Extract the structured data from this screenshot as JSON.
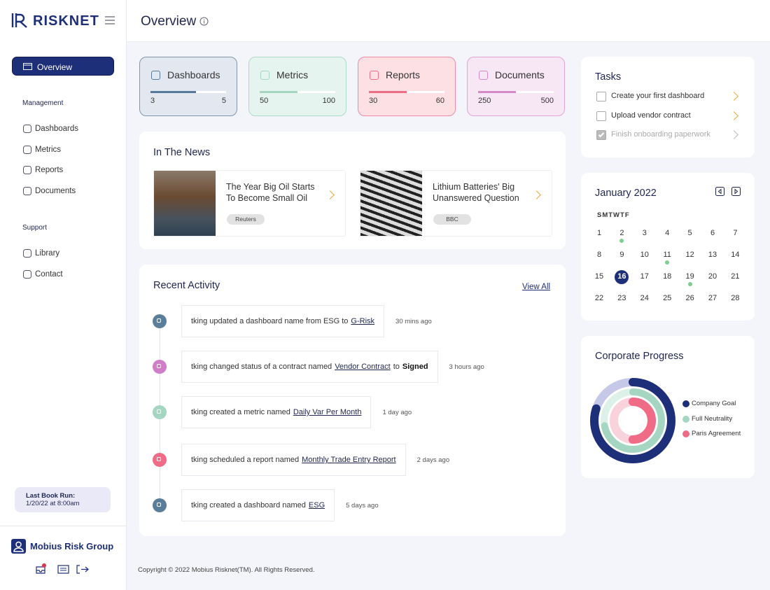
{
  "brand": "RISKNET",
  "header": {
    "title": "Overview"
  },
  "sidebar": {
    "active": "Overview",
    "sections": [
      {
        "title": "Management",
        "items": [
          "Dashboards",
          "Metrics",
          "Reports",
          "Documents"
        ]
      },
      {
        "title": "Support",
        "items": [
          "Library",
          "Contact"
        ]
      }
    ],
    "last_book_run": {
      "label": "Last Book Run:",
      "value": "1/20/22 at 8:00am"
    },
    "user": "Mobius Risk Group"
  },
  "stats": [
    {
      "title": "Dashboards",
      "current": 3,
      "total": 5,
      "color": "#56789a",
      "background": "#e3e8f0",
      "border": "#8096ad"
    },
    {
      "title": "Metrics",
      "current": 50,
      "total": 100,
      "color": "#a4d6c2",
      "background": "#e6f4ef",
      "border": "#abdcc8"
    },
    {
      "title": "Reports",
      "current": 30,
      "total": 60,
      "color": "#ef6b86",
      "background": "#fde0e4",
      "border": "#f08aa0"
    },
    {
      "title": "Documents",
      "current": 250,
      "total": 500,
      "color": "#d48ac8",
      "background": "#f7e6f3",
      "border": "#e2a4d8"
    }
  ],
  "news": {
    "title": "In The News",
    "items": [
      {
        "headline": "The Year Big Oil Starts To Become Small Oil",
        "source": "Reuters"
      },
      {
        "headline": "Lithium Batteries' Big Unanswered Question",
        "source": "BBC"
      }
    ]
  },
  "activity": {
    "title": "Recent Activity",
    "view_all": "View All",
    "items": [
      {
        "text": "tking updated a dashboard name from ESG to",
        "link": "G-Risk",
        "time": "30 mins ago",
        "color": "#5a7d9a"
      },
      {
        "text": "tking changed status of a contract named",
        "link": "Vendor Contract",
        "after": "to",
        "strong": "Signed",
        "time": "3 hours ago",
        "color": "#d07ec7"
      },
      {
        "text": "tking created a metric named",
        "link": "Daily Var Per Month",
        "time": "1 day ago",
        "color": "#a4d6c2"
      },
      {
        "text": "tking scheduled a report named",
        "link": "Monthly Trade Entry Report",
        "time": "2 days ago",
        "color": "#ef6b86"
      },
      {
        "text": "tking created a dashboard named",
        "link": "ESG",
        "time": "5 days ago",
        "color": "#5a7d9a"
      }
    ]
  },
  "tasks": {
    "title": "Tasks",
    "items": [
      {
        "label": "Create your first dashboard",
        "done": false
      },
      {
        "label": "Upload vendor contract",
        "done": false
      },
      {
        "label": "Finish onboarding paperwork",
        "done": true
      }
    ]
  },
  "calendar": {
    "title": "January 2022",
    "weekdays": "SMTWTF",
    "days": [
      1,
      2,
      3,
      4,
      5,
      6,
      7,
      8,
      9,
      10,
      11,
      12,
      13,
      14,
      15,
      16,
      17,
      18,
      19,
      20,
      21,
      22,
      23,
      24,
      25,
      26,
      27,
      28
    ],
    "selected": 16,
    "events": [
      2,
      11,
      19
    ]
  },
  "progress": {
    "title": "Corporate Progress",
    "series": [
      {
        "name": "Company Goal",
        "value": 80,
        "color": "#1e2f7a",
        "track": "#c5c8e6"
      },
      {
        "name": "Full Neutrality",
        "value": 72,
        "color": "#a4d6c2",
        "track": "#dcf1e8"
      },
      {
        "name": "Paris Agreement",
        "value": 50,
        "color": "#ef6b86",
        "track": "#f9d3db"
      }
    ]
  },
  "footer": "Copyright © 2022 Mobius Risknet(TM). All Rights Reserved."
}
